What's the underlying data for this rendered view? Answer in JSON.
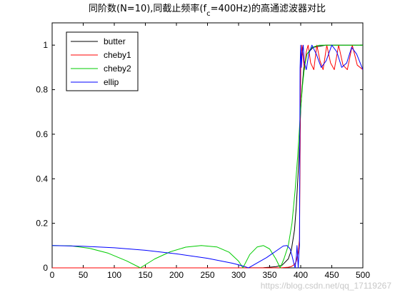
{
  "chart_data": {
    "type": "line",
    "title": {
      "before": "同阶数(N=10),同截止频率(f",
      "sub": "c",
      "after": "=400Hz)的高通滤波器对比"
    },
    "xlabel": "",
    "ylabel": "",
    "xlim": [
      0,
      500
    ],
    "ylim": [
      0,
      1.1
    ],
    "xticks": [
      0,
      50,
      100,
      150,
      200,
      250,
      300,
      350,
      400,
      450,
      500
    ],
    "yticks": [
      0,
      0.2,
      0.4,
      0.6,
      0.8,
      1
    ],
    "ytick_labels": [
      "0",
      "0.2",
      "0.4",
      "0.6",
      "0.8",
      "1"
    ],
    "grid": false,
    "legend_position": "top-left",
    "series": [
      {
        "name": "butter",
        "color": "#000000",
        "x": [
          0,
          300,
          340,
          360,
          370,
          380,
          385,
          390,
          393,
          396,
          398,
          400,
          402,
          405,
          410,
          420,
          440,
          470,
          500
        ],
        "y": [
          0,
          0,
          0.001,
          0.005,
          0.012,
          0.04,
          0.08,
          0.17,
          0.28,
          0.43,
          0.55,
          0.71,
          0.8,
          0.9,
          0.96,
          0.99,
          1.0,
          1.0,
          1.0
        ]
      },
      {
        "name": "cheby1",
        "color": "#ff0000",
        "x": [
          0,
          350,
          370,
          380,
          385,
          390,
          393,
          396,
          398,
          400,
          402,
          404,
          406,
          409,
          412,
          416,
          421,
          426,
          431,
          436,
          442,
          448,
          454,
          461,
          468,
          475,
          483,
          491,
          500
        ],
        "y": [
          0,
          0,
          0.001,
          0.003,
          0.006,
          0.015,
          0.03,
          0.07,
          0.13,
          0.89,
          1.0,
          0.94,
          0.89,
          0.97,
          1.0,
          0.92,
          0.89,
          1.0,
          0.93,
          0.89,
          1.0,
          0.92,
          0.89,
          1.0,
          0.91,
          0.89,
          1.0,
          0.91,
          0.89
        ]
      },
      {
        "name": "cheby2",
        "color": "#00cc00",
        "x": [
          0,
          30,
          60,
          90,
          120,
          142,
          165,
          190,
          215,
          240,
          265,
          285,
          300,
          307,
          318,
          330,
          340,
          350,
          360,
          367,
          373,
          380,
          386,
          391,
          395,
          398,
          400,
          403,
          406,
          410,
          418,
          430,
          450,
          500
        ],
        "y": [
          0.1,
          0.099,
          0.088,
          0.066,
          0.031,
          0.0,
          0.04,
          0.072,
          0.093,
          0.1,
          0.094,
          0.07,
          0.03,
          0.0,
          0.06,
          0.094,
          0.1,
          0.085,
          0.04,
          0.0,
          0.04,
          0.1,
          0.2,
          0.35,
          0.5,
          0.63,
          0.72,
          0.82,
          0.9,
          0.96,
          0.99,
          1.0,
          1.0,
          1.0
        ]
      },
      {
        "name": "ellip",
        "color": "#0000ff",
        "x": [
          0,
          50,
          100,
          150,
          200,
          250,
          290,
          305,
          312,
          316,
          320,
          330,
          345,
          360,
          372,
          378,
          383,
          386,
          389,
          391,
          393,
          394,
          395,
          396,
          397,
          398,
          399,
          400,
          401,
          402,
          404,
          406,
          409,
          413,
          418,
          425,
          433,
          441,
          450,
          458,
          466,
          474,
          482,
          490,
          500
        ],
        "y": [
          0.1,
          0.097,
          0.09,
          0.079,
          0.063,
          0.043,
          0.021,
          0.01,
          0.004,
          0.0,
          0.006,
          0.022,
          0.046,
          0.075,
          0.098,
          0.1,
          0.085,
          0.055,
          0.02,
          0.0,
          0.05,
          0.1,
          0.05,
          0.0,
          0.06,
          0.1,
          0.9,
          1.0,
          0.9,
          0.95,
          1.0,
          0.92,
          0.89,
          0.96,
          1.0,
          0.96,
          0.9,
          0.93,
          1.0,
          0.97,
          0.9,
          0.92,
          0.99,
          0.96,
          0.89
        ]
      }
    ]
  },
  "watermark": "https://blog.csdn.net/qq_17119267"
}
